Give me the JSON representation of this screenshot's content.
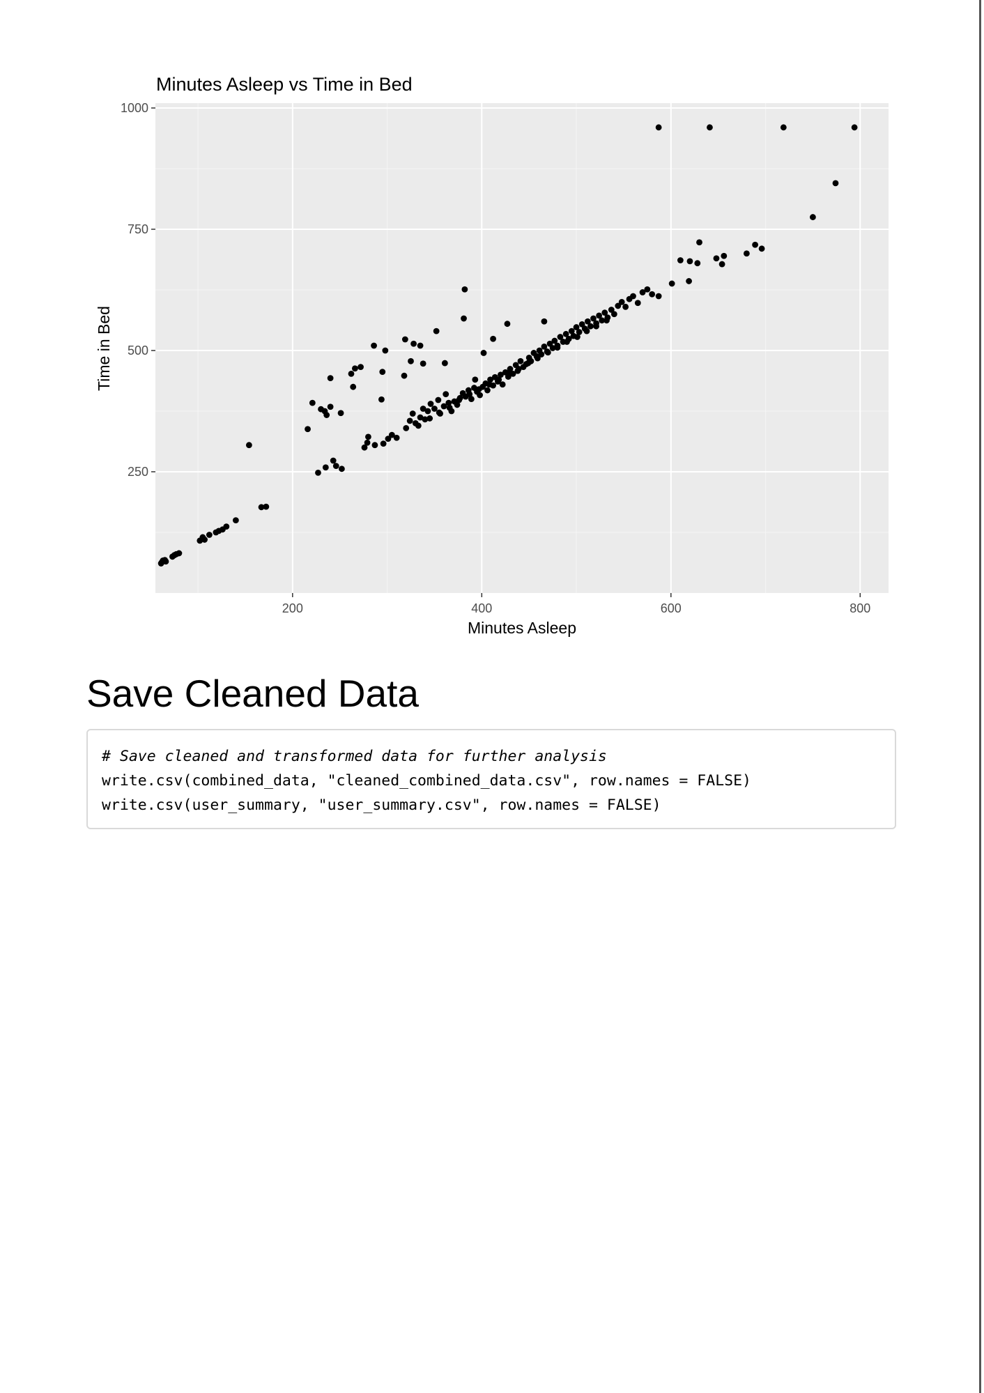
{
  "chart_data": {
    "type": "scatter",
    "title": "Minutes Asleep vs Time in Bed",
    "xlabel": "Minutes Asleep",
    "ylabel": "Time in Bed",
    "xlim": [
      55,
      830
    ],
    "ylim": [
      0,
      1010
    ],
    "x_ticks": [
      200,
      400,
      600,
      800
    ],
    "y_ticks": [
      250,
      500,
      750,
      1000
    ],
    "x_minor": [
      100,
      300,
      500,
      700
    ],
    "y_minor": [
      125,
      375,
      625,
      875
    ],
    "grid": true,
    "colors": {
      "panel_background": "#ebebeb",
      "grid_major": "#ffffff",
      "grid_minor": "#f5f5f5",
      "point": "#000000",
      "tick_label": "#4d4d4d"
    },
    "points": [
      [
        61,
        61
      ],
      [
        62,
        64
      ],
      [
        63,
        67
      ],
      [
        64,
        66
      ],
      [
        65,
        68
      ],
      [
        66,
        65
      ],
      [
        73,
        75
      ],
      [
        75,
        78
      ],
      [
        77,
        80
      ],
      [
        80,
        82
      ],
      [
        102,
        108
      ],
      [
        105,
        115
      ],
      [
        107,
        110
      ],
      [
        112,
        120
      ],
      [
        119,
        125
      ],
      [
        122,
        128
      ],
      [
        126,
        131
      ],
      [
        130,
        137
      ],
      [
        140,
        150
      ],
      [
        167,
        177
      ],
      [
        172,
        178
      ],
      [
        154,
        305
      ],
      [
        216,
        338
      ],
      [
        221,
        392
      ],
      [
        230,
        379
      ],
      [
        234,
        375
      ],
      [
        236,
        367
      ],
      [
        240,
        384
      ],
      [
        240,
        443
      ],
      [
        251,
        371
      ],
      [
        262,
        452
      ],
      [
        264,
        425
      ],
      [
        266,
        463
      ],
      [
        272,
        466
      ],
      [
        286,
        510
      ],
      [
        294,
        399
      ],
      [
        295,
        456
      ],
      [
        298,
        500
      ],
      [
        319,
        523
      ],
      [
        318,
        448
      ],
      [
        325,
        478
      ],
      [
        328,
        514
      ],
      [
        335,
        510
      ],
      [
        338,
        473
      ],
      [
        352,
        540
      ],
      [
        361,
        474
      ],
      [
        381,
        566
      ],
      [
        382,
        626
      ],
      [
        393,
        440
      ],
      [
        402,
        495
      ],
      [
        412,
        524
      ],
      [
        427,
        555
      ],
      [
        466,
        560
      ],
      [
        227,
        248
      ],
      [
        235,
        259
      ],
      [
        243,
        273
      ],
      [
        246,
        262
      ],
      [
        252,
        256
      ],
      [
        276,
        300
      ],
      [
        279,
        310
      ],
      [
        280,
        322
      ],
      [
        287,
        305
      ],
      [
        296,
        308
      ],
      [
        301,
        318
      ],
      [
        305,
        326
      ],
      [
        310,
        320
      ],
      [
        320,
        340
      ],
      [
        324,
        355
      ],
      [
        327,
        370
      ],
      [
        330,
        350
      ],
      [
        333,
        345
      ],
      [
        335,
        362
      ],
      [
        338,
        380
      ],
      [
        340,
        358
      ],
      [
        343,
        375
      ],
      [
        346,
        390
      ],
      [
        350,
        380
      ],
      [
        354,
        398
      ],
      [
        356,
        370
      ],
      [
        360,
        385
      ],
      [
        362,
        410
      ],
      [
        365,
        392
      ],
      [
        368,
        375
      ],
      [
        371,
        395
      ],
      [
        374,
        388
      ],
      [
        377,
        402
      ],
      [
        380,
        412
      ],
      [
        383,
        405
      ],
      [
        386,
        418
      ],
      [
        389,
        400
      ],
      [
        392,
        423
      ],
      [
        395,
        415
      ],
      [
        398,
        408
      ],
      [
        401,
        425
      ],
      [
        404,
        432
      ],
      [
        406,
        418
      ],
      [
        409,
        440
      ],
      [
        412,
        428
      ],
      [
        414,
        445
      ],
      [
        417,
        436
      ],
      [
        420,
        450
      ],
      [
        422,
        430
      ],
      [
        425,
        455
      ],
      [
        428,
        446
      ],
      [
        430,
        462
      ],
      [
        433,
        452
      ],
      [
        436,
        470
      ],
      [
        438,
        458
      ],
      [
        441,
        478
      ],
      [
        444,
        466
      ],
      [
        447,
        472
      ],
      [
        450,
        485
      ],
      [
        452,
        478
      ],
      [
        455,
        495
      ],
      [
        458,
        488
      ],
      [
        461,
        500
      ],
      [
        463,
        492
      ],
      [
        466,
        508
      ],
      [
        469,
        498
      ],
      [
        472,
        514
      ],
      [
        475,
        505
      ],
      [
        477,
        520
      ],
      [
        480,
        510
      ],
      [
        483,
        528
      ],
      [
        486,
        518
      ],
      [
        489,
        534
      ],
      [
        492,
        524
      ],
      [
        495,
        540
      ],
      [
        497,
        530
      ],
      [
        500,
        548
      ],
      [
        503,
        538
      ],
      [
        506,
        554
      ],
      [
        509,
        545
      ],
      [
        512,
        560
      ],
      [
        515,
        550
      ],
      [
        518,
        566
      ],
      [
        521,
        556
      ],
      [
        524,
        572
      ],
      [
        527,
        562
      ],
      [
        530,
        578
      ],
      [
        533,
        568
      ],
      [
        537,
        584
      ],
      [
        540,
        575
      ],
      [
        544,
        592
      ],
      [
        548,
        600
      ],
      [
        552,
        590
      ],
      [
        556,
        606
      ],
      [
        560,
        612
      ],
      [
        565,
        598
      ],
      [
        570,
        620
      ],
      [
        575,
        626
      ],
      [
        580,
        616
      ],
      [
        345,
        360
      ],
      [
        355,
        372
      ],
      [
        366,
        382
      ],
      [
        376,
        398
      ],
      [
        387,
        410
      ],
      [
        397,
        420
      ],
      [
        408,
        430
      ],
      [
        418,
        440
      ],
      [
        428,
        452
      ],
      [
        439,
        462
      ],
      [
        449,
        474
      ],
      [
        459,
        484
      ],
      [
        470,
        496
      ],
      [
        480,
        506
      ],
      [
        490,
        518
      ],
      [
        501,
        528
      ],
      [
        511,
        540
      ],
      [
        521,
        550
      ],
      [
        532,
        562
      ],
      [
        587,
        612
      ],
      [
        601,
        638
      ],
      [
        610,
        686
      ],
      [
        619,
        643
      ],
      [
        620,
        684
      ],
      [
        628,
        680
      ],
      [
        630,
        723
      ],
      [
        648,
        690
      ],
      [
        654,
        678
      ],
      [
        656,
        695
      ],
      [
        680,
        700
      ],
      [
        689,
        718
      ],
      [
        696,
        710
      ],
      [
        750,
        775
      ],
      [
        774,
        845
      ],
      [
        587,
        960
      ],
      [
        641,
        960
      ],
      [
        719,
        960
      ],
      [
        794,
        960
      ]
    ]
  },
  "section": {
    "heading": "Save Cleaned Data"
  },
  "code": {
    "comment": "# Save cleaned and transformed data for further analysis",
    "line1": "write.csv(combined_data, \"cleaned_combined_data.csv\", row.names = FALSE)",
    "line2": "write.csv(user_summary, \"user_summary.csv\", row.names = FALSE)"
  }
}
